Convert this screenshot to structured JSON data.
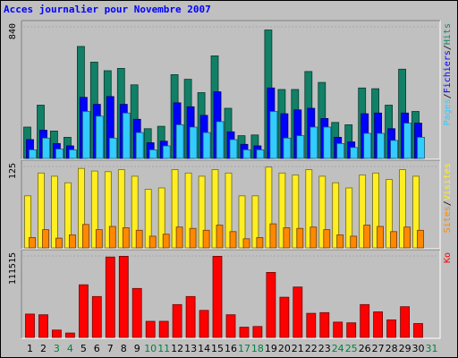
{
  "title": "Acces journalier pour Novembre 2007",
  "colors": {
    "pages": "#33ccff",
    "fichiers": "#0000ff",
    "hits": "#118066",
    "sites": "#ff8800",
    "visites": "#ffee22",
    "ko": "#ff0000",
    "title": "#0000ff",
    "weekday": "#000000",
    "weekend": "#008040",
    "panel_bg": "#c0c0c0"
  },
  "chart_data": {
    "type": "bar",
    "title": "Acces journalier pour Novembre 2007",
    "x": [
      "1",
      "2",
      "3",
      "4",
      "5",
      "6",
      "7",
      "8",
      "9",
      "10",
      "11",
      "12",
      "13",
      "14",
      "15",
      "16",
      "17",
      "18",
      "19",
      "20",
      "21",
      "22",
      "23",
      "24",
      "25",
      "26",
      "27",
      "28",
      "29",
      "30",
      "31"
    ],
    "weekend_days": [
      "3",
      "4",
      "10",
      "11",
      "17",
      "18",
      "24",
      "25",
      "31"
    ],
    "panels": [
      {
        "id": "hits",
        "axis_max_label": "840",
        "ylim": [
          0,
          840
        ],
        "series": [
          {
            "name": "Hits",
            "color_key": "hits",
            "values": [
              200,
              340,
              175,
              135,
              715,
              615,
              560,
              575,
              470,
              190,
              205,
              535,
              505,
              420,
              655,
              320,
              145,
              150,
              820,
              440,
              440,
              555,
              485,
              230,
              215,
              450,
              445,
              340,
              570,
              300,
              0
            ]
          },
          {
            "name": "Fichiers",
            "color_key": "fichiers",
            "values": [
              120,
              180,
              95,
              80,
              390,
              345,
              395,
              345,
              250,
              100,
              110,
              355,
              330,
              275,
              425,
              170,
              90,
              80,
              450,
              285,
              310,
              320,
              255,
              135,
              105,
              285,
              290,
              190,
              290,
              225,
              0
            ]
          },
          {
            "name": "Pages",
            "color_key": "pages",
            "values": [
              55,
              130,
              60,
              55,
              300,
              270,
              130,
              290,
              165,
              55,
              80,
              215,
              200,
              165,
              235,
              120,
              55,
              55,
              300,
              130,
              145,
              200,
              200,
              95,
              70,
              160,
              160,
              115,
              225,
              135,
              0
            ]
          }
        ],
        "legend_labels": [
          {
            "key": "pages",
            "text": "Pages"
          },
          {
            "key": "fichiers",
            "text": "Fichiers"
          },
          {
            "key": "hits",
            "text": "Hits"
          }
        ]
      },
      {
        "id": "visites",
        "axis_max_label": "125",
        "ylim": [
          0,
          125
        ],
        "series": [
          {
            "name": "Visites",
            "color_key": "visites",
            "values": [
              80,
              115,
              110,
              100,
              122,
              118,
              117,
              120,
              110,
              90,
              92,
              120,
              115,
              110,
              120,
              115,
              80,
              80,
              124,
              115,
              112,
              120,
              110,
              100,
              92,
              112,
              115,
              105,
              120,
              110,
              0
            ]
          },
          {
            "name": "Sites",
            "color_key": "sites",
            "values": [
              16,
              28,
              15,
              20,
              36,
              28,
              33,
              31,
              27,
              18,
              21,
              32,
              30,
              27,
              35,
              25,
              14,
              16,
              37,
              31,
              30,
              32,
              28,
              20,
              18,
              35,
              33,
              25,
              32,
              27,
              0
            ]
          }
        ],
        "legend_labels": [
          {
            "key": "sites",
            "text": "Sites"
          },
          {
            "key": "visites",
            "text": "Visites"
          }
        ]
      },
      {
        "id": "ko",
        "axis_max_label": "111515",
        "ylim": [
          0,
          111515
        ],
        "series": [
          {
            "name": "Ko",
            "color_key": "ko",
            "values": [
              32000,
              31000,
              10000,
              6000,
              72000,
              56000,
              110000,
              111000,
              67000,
              22000,
              22000,
              45000,
              56000,
              37000,
              111000,
              31000,
              14000,
              15000,
              89000,
              55000,
              69000,
              33000,
              34000,
              21000,
              20000,
              45000,
              35000,
              24000,
              42000,
              19000,
              0
            ]
          }
        ],
        "legend_labels": [
          {
            "key": "ko",
            "text": "Ko"
          }
        ]
      }
    ]
  }
}
